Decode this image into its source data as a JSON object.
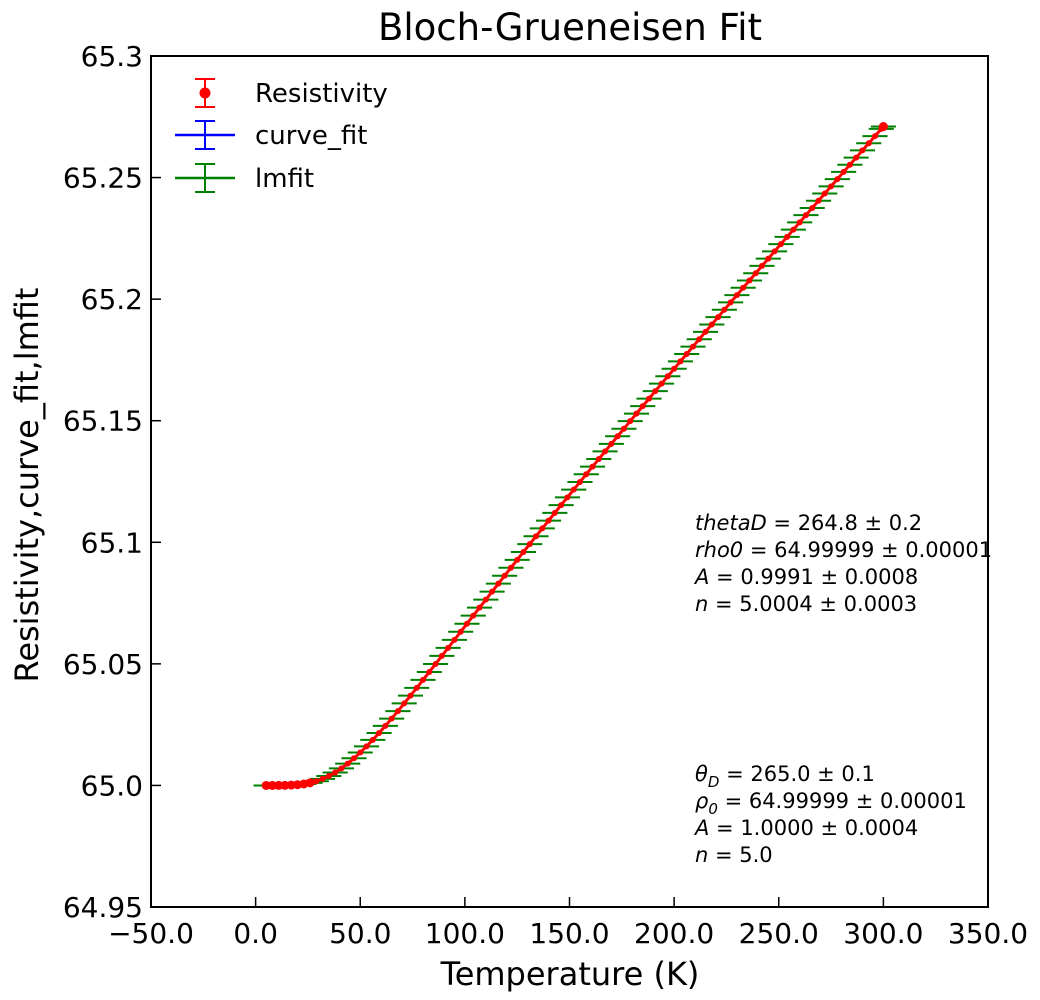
{
  "chart_data": {
    "type": "scatter",
    "title": "Bloch-Grueneisen Fit",
    "xlabel": "Temperature (K)",
    "ylabel": "Resistivity,curve_fit,lmfit",
    "xlim": [
      -50,
      350
    ],
    "ylim": [
      64.95,
      65.3
    ],
    "x_ticks": [
      "−50.0",
      "0.0",
      "50.0",
      "100.0",
      "150.0",
      "200.0",
      "250.0",
      "300.0",
      "350.0"
    ],
    "y_ticks": [
      "64.95",
      "65.0",
      "65.05",
      "65.1",
      "65.15",
      "65.2",
      "65.25",
      "65.3"
    ],
    "grid": false,
    "legend_position": "top-left",
    "model": {
      "rho0": 64.99999,
      "theta_D": 265.0,
      "A": 1.0,
      "n": 5,
      "x_start": 5,
      "x_end": 300,
      "x_step": 3
    },
    "series": [
      {
        "name": "Resistivity",
        "color": "#ff0000",
        "marker": "circle",
        "errorbars": true
      },
      {
        "name": "curve_fit",
        "color": "#0000ff",
        "marker": "none",
        "errorbars": true
      },
      {
        "name": "lmfit",
        "color": "#008000",
        "marker": "none",
        "errorbars": true
      }
    ],
    "annotations": [
      {
        "lines": [
          {
            "sym": "thetaD",
            "rest": " = 264.8 ± 0.2"
          },
          {
            "sym": "rho0",
            "rest": " = 64.99999 ± 0.00001"
          },
          {
            "sym": "A",
            "rest": " = 0.9991 ± 0.0008"
          },
          {
            "sym": "n",
            "rest": " = 5.0004 ± 0.0003"
          }
        ]
      },
      {
        "lines": [
          {
            "sym": "θ",
            "sub": "D",
            "rest": " = 265.0 ± 0.1"
          },
          {
            "sym": "ρ",
            "sub": "0",
            "rest": " = 64.99999 ± 0.00001"
          },
          {
            "sym": "A",
            "rest": " = 1.0000 ± 0.0004"
          },
          {
            "sym": "n",
            "rest": " = 5.0"
          }
        ]
      }
    ]
  }
}
